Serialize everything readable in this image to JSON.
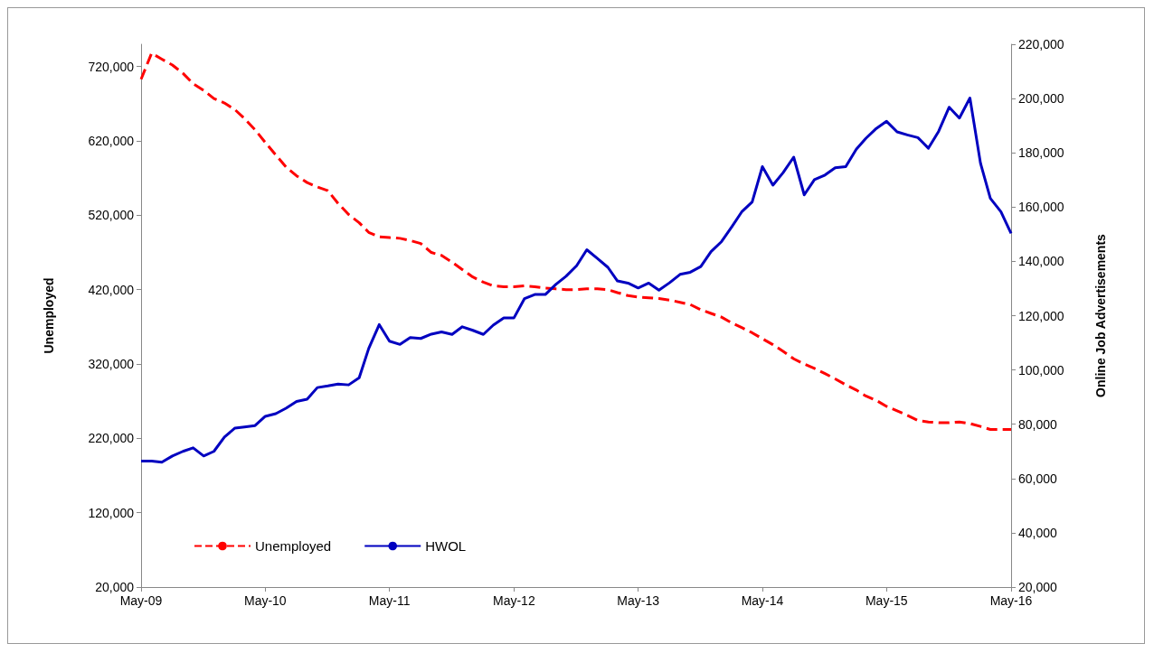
{
  "chart_data": {
    "type": "line",
    "ylabel": "Unemployed",
    "y2label": "Online Job Advertisements",
    "x": [
      "2009-05",
      "2009-06",
      "2009-07",
      "2009-08",
      "2009-09",
      "2009-10",
      "2009-11",
      "2009-12",
      "2010-01",
      "2010-02",
      "2010-03",
      "2010-04",
      "2010-05",
      "2010-06",
      "2010-07",
      "2010-08",
      "2010-09",
      "2010-10",
      "2010-11",
      "2010-12",
      "2011-01",
      "2011-02",
      "2011-03",
      "2011-04",
      "2011-05",
      "2011-06",
      "2011-07",
      "2011-08",
      "2011-09",
      "2011-10",
      "2011-11",
      "2011-12",
      "2012-01",
      "2012-02",
      "2012-03",
      "2012-04",
      "2012-05",
      "2012-06",
      "2012-07",
      "2012-08",
      "2012-09",
      "2012-10",
      "2012-11",
      "2012-12",
      "2013-01",
      "2013-02",
      "2013-03",
      "2013-04",
      "2013-05",
      "2013-06",
      "2013-07",
      "2013-08",
      "2013-09",
      "2013-10",
      "2013-11",
      "2013-12",
      "2014-01",
      "2014-02",
      "2014-03",
      "2014-04",
      "2014-05",
      "2014-06",
      "2014-07",
      "2014-08",
      "2014-09",
      "2014-10",
      "2014-11",
      "2014-12",
      "2015-01",
      "2015-02",
      "2015-03",
      "2015-04",
      "2015-05",
      "2015-06",
      "2015-07",
      "2015-08",
      "2015-09",
      "2015-10",
      "2015-11",
      "2015-12",
      "2016-01",
      "2016-02",
      "2016-03",
      "2016-04",
      "2016-05"
    ],
    "series": [
      {
        "name": "Unemployed",
        "color": "#ff0000",
        "line_style": "dashed",
        "values": [
          703000,
          738000,
          730000,
          722000,
          711000,
          697000,
          688000,
          677000,
          671000,
          662000,
          650000,
          635000,
          618000,
          601000,
          585000,
          573000,
          564000,
          558000,
          553000,
          536000,
          521000,
          510000,
          497000,
          491000,
          490000,
          489000,
          486000,
          482000,
          470000,
          466000,
          457000,
          447000,
          437000,
          430000,
          425000,
          424000,
          424000,
          425000,
          424000,
          422000,
          421000,
          420000,
          420000,
          421000,
          421000,
          420000,
          416000,
          412000,
          410000,
          409000,
          408000,
          406000,
          403000,
          400000,
          393000,
          388000,
          383000,
          375000,
          369000,
          362000,
          354000,
          346000,
          337000,
          327000,
          320000,
          314000,
          307000,
          300000,
          292000,
          285000,
          277000,
          271000,
          263000,
          257000,
          251000,
          244000,
          242000,
          241000,
          241000,
          242000,
          240000,
          236000,
          232000,
          232000,
          232000
        ]
      },
      {
        "name": "HWOL",
        "color": "#0000c0",
        "line_style": "solid",
        "axis": "y2",
        "values": [
          66400,
          66400,
          66000,
          68300,
          70000,
          71300,
          68300,
          70000,
          75300,
          78600,
          79000,
          79500,
          82900,
          83900,
          85900,
          88400,
          89200,
          93500,
          94100,
          94800,
          94500,
          97100,
          107900,
          116700,
          110600,
          109400,
          111900,
          111600,
          113200,
          114000,
          113100,
          115900,
          114600,
          113100,
          116500,
          119200,
          119200,
          126300,
          127800,
          127800,
          131500,
          134500,
          138400,
          144300,
          141100,
          137800,
          132800,
          132000,
          130200,
          132000,
          129400,
          132100,
          135200,
          136000,
          138100,
          143600,
          147300,
          152900,
          158200,
          161900,
          174900,
          168100,
          172700,
          178400,
          164500,
          170100,
          171800,
          174500,
          174900,
          181300,
          185300,
          189000,
          191600,
          187700,
          186600,
          185600,
          181700,
          187900,
          196800,
          192800,
          200200,
          176200,
          163200,
          158300,
          150300
        ]
      }
    ],
    "xlim": [
      "2009-05",
      "2016-05"
    ],
    "xticks": [
      {
        "value": "2009-05",
        "label": "May-09"
      },
      {
        "value": "2010-05",
        "label": "May-10"
      },
      {
        "value": "2011-05",
        "label": "May-11"
      },
      {
        "value": "2012-05",
        "label": "May-12"
      },
      {
        "value": "2013-05",
        "label": "May-13"
      },
      {
        "value": "2014-05",
        "label": "May-14"
      },
      {
        "value": "2015-05",
        "label": "May-15"
      },
      {
        "value": "2016-05",
        "label": "May-16"
      }
    ],
    "ylim": [
      20000,
      750000
    ],
    "yticks": [
      {
        "value": 20000,
        "label": "20,000"
      },
      {
        "value": 120000,
        "label": "120,000"
      },
      {
        "value": 220000,
        "label": "220,000"
      },
      {
        "value": 320000,
        "label": "320,000"
      },
      {
        "value": 420000,
        "label": "420,000"
      },
      {
        "value": 520000,
        "label": "520,000"
      },
      {
        "value": 620000,
        "label": "620,000"
      },
      {
        "value": 720000,
        "label": "720,000"
      }
    ],
    "y2lim": [
      20000,
      220000
    ],
    "y2ticks": [
      {
        "value": 20000,
        "label": "20,000"
      },
      {
        "value": 40000,
        "label": "40,000"
      },
      {
        "value": 60000,
        "label": "60,000"
      },
      {
        "value": 80000,
        "label": "80,000"
      },
      {
        "value": 100000,
        "label": "100,000"
      },
      {
        "value": 120000,
        "label": "120,000"
      },
      {
        "value": 140000,
        "label": "140,000"
      },
      {
        "value": 160000,
        "label": "160,000"
      },
      {
        "value": 180000,
        "label": "180,000"
      },
      {
        "value": 200000,
        "label": "200,000"
      },
      {
        "value": 220000,
        "label": "220,000"
      }
    ],
    "grid": false,
    "legend": "bottom left",
    "marker": "none"
  }
}
